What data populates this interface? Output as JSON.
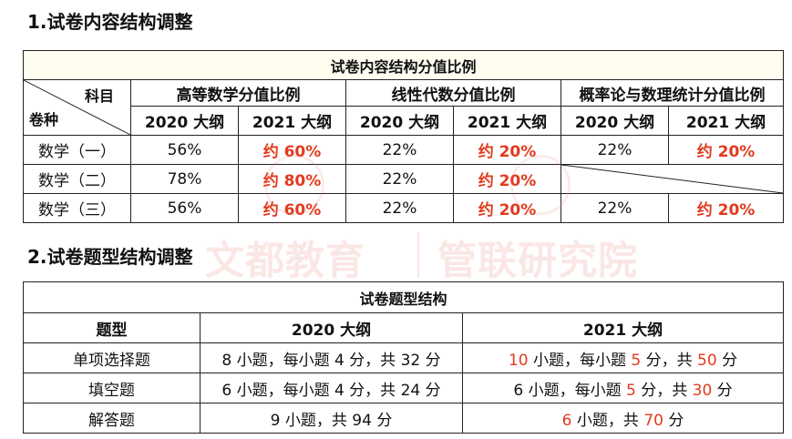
{
  "section1": {
    "heading": "1.试卷内容结构调整",
    "caption": "试卷内容结构分值比例",
    "corner_top": "科目",
    "corner_bottom": "卷种",
    "groups": [
      "高等数学分值比例",
      "线性代数分值比例",
      "概率论与数理统计分值比例"
    ],
    "sub_headers": [
      "2020 大纲",
      "2021 大纲",
      "2020 大纲",
      "2021 大纲",
      "2020 大纲",
      "2021 大纲"
    ],
    "rows": [
      {
        "label": "数学（一）",
        "cells": [
          "56%",
          "约 60%",
          "22%",
          "约 20%",
          "22%",
          "约 20%"
        ]
      },
      {
        "label": "数学（二）",
        "cells": [
          "78%",
          "约 80%",
          "22%",
          "约 20%",
          "",
          ""
        ]
      },
      {
        "label": "数学（三）",
        "cells": [
          "56%",
          "约 60%",
          "22%",
          "约 20%",
          "22%",
          "约 20%"
        ]
      }
    ]
  },
  "section2": {
    "heading": "2.试卷题型结构调整",
    "caption": "试卷题型结构",
    "headers": [
      "题型",
      "2020 大纲",
      "2021 大纲"
    ],
    "rows": [
      {
        "type": "单项选择题",
        "y2020": "8 小题，每小题 4 分，共 32 分",
        "y2021": [
          "10",
          " 小题，每小题 ",
          "5",
          " 分，共 ",
          "50",
          " 分"
        ]
      },
      {
        "type": "填空题",
        "y2020": "6 小题，每小题 4 分，共 24 分",
        "y2021": [
          "6",
          " 小题，每小题 ",
          "5",
          " 分，共 ",
          "30",
          " 分"
        ]
      },
      {
        "type": "解答题",
        "y2020": "9 小题，共 94 分",
        "y2021": [
          "6",
          " 小题，共 ",
          "70",
          " 分"
        ]
      }
    ]
  },
  "watermark": {
    "left": "文都教育",
    "right": "管联研究院"
  },
  "colors": {
    "highlight": "#e23a1e",
    "caption_bg": "#fffdf0"
  }
}
